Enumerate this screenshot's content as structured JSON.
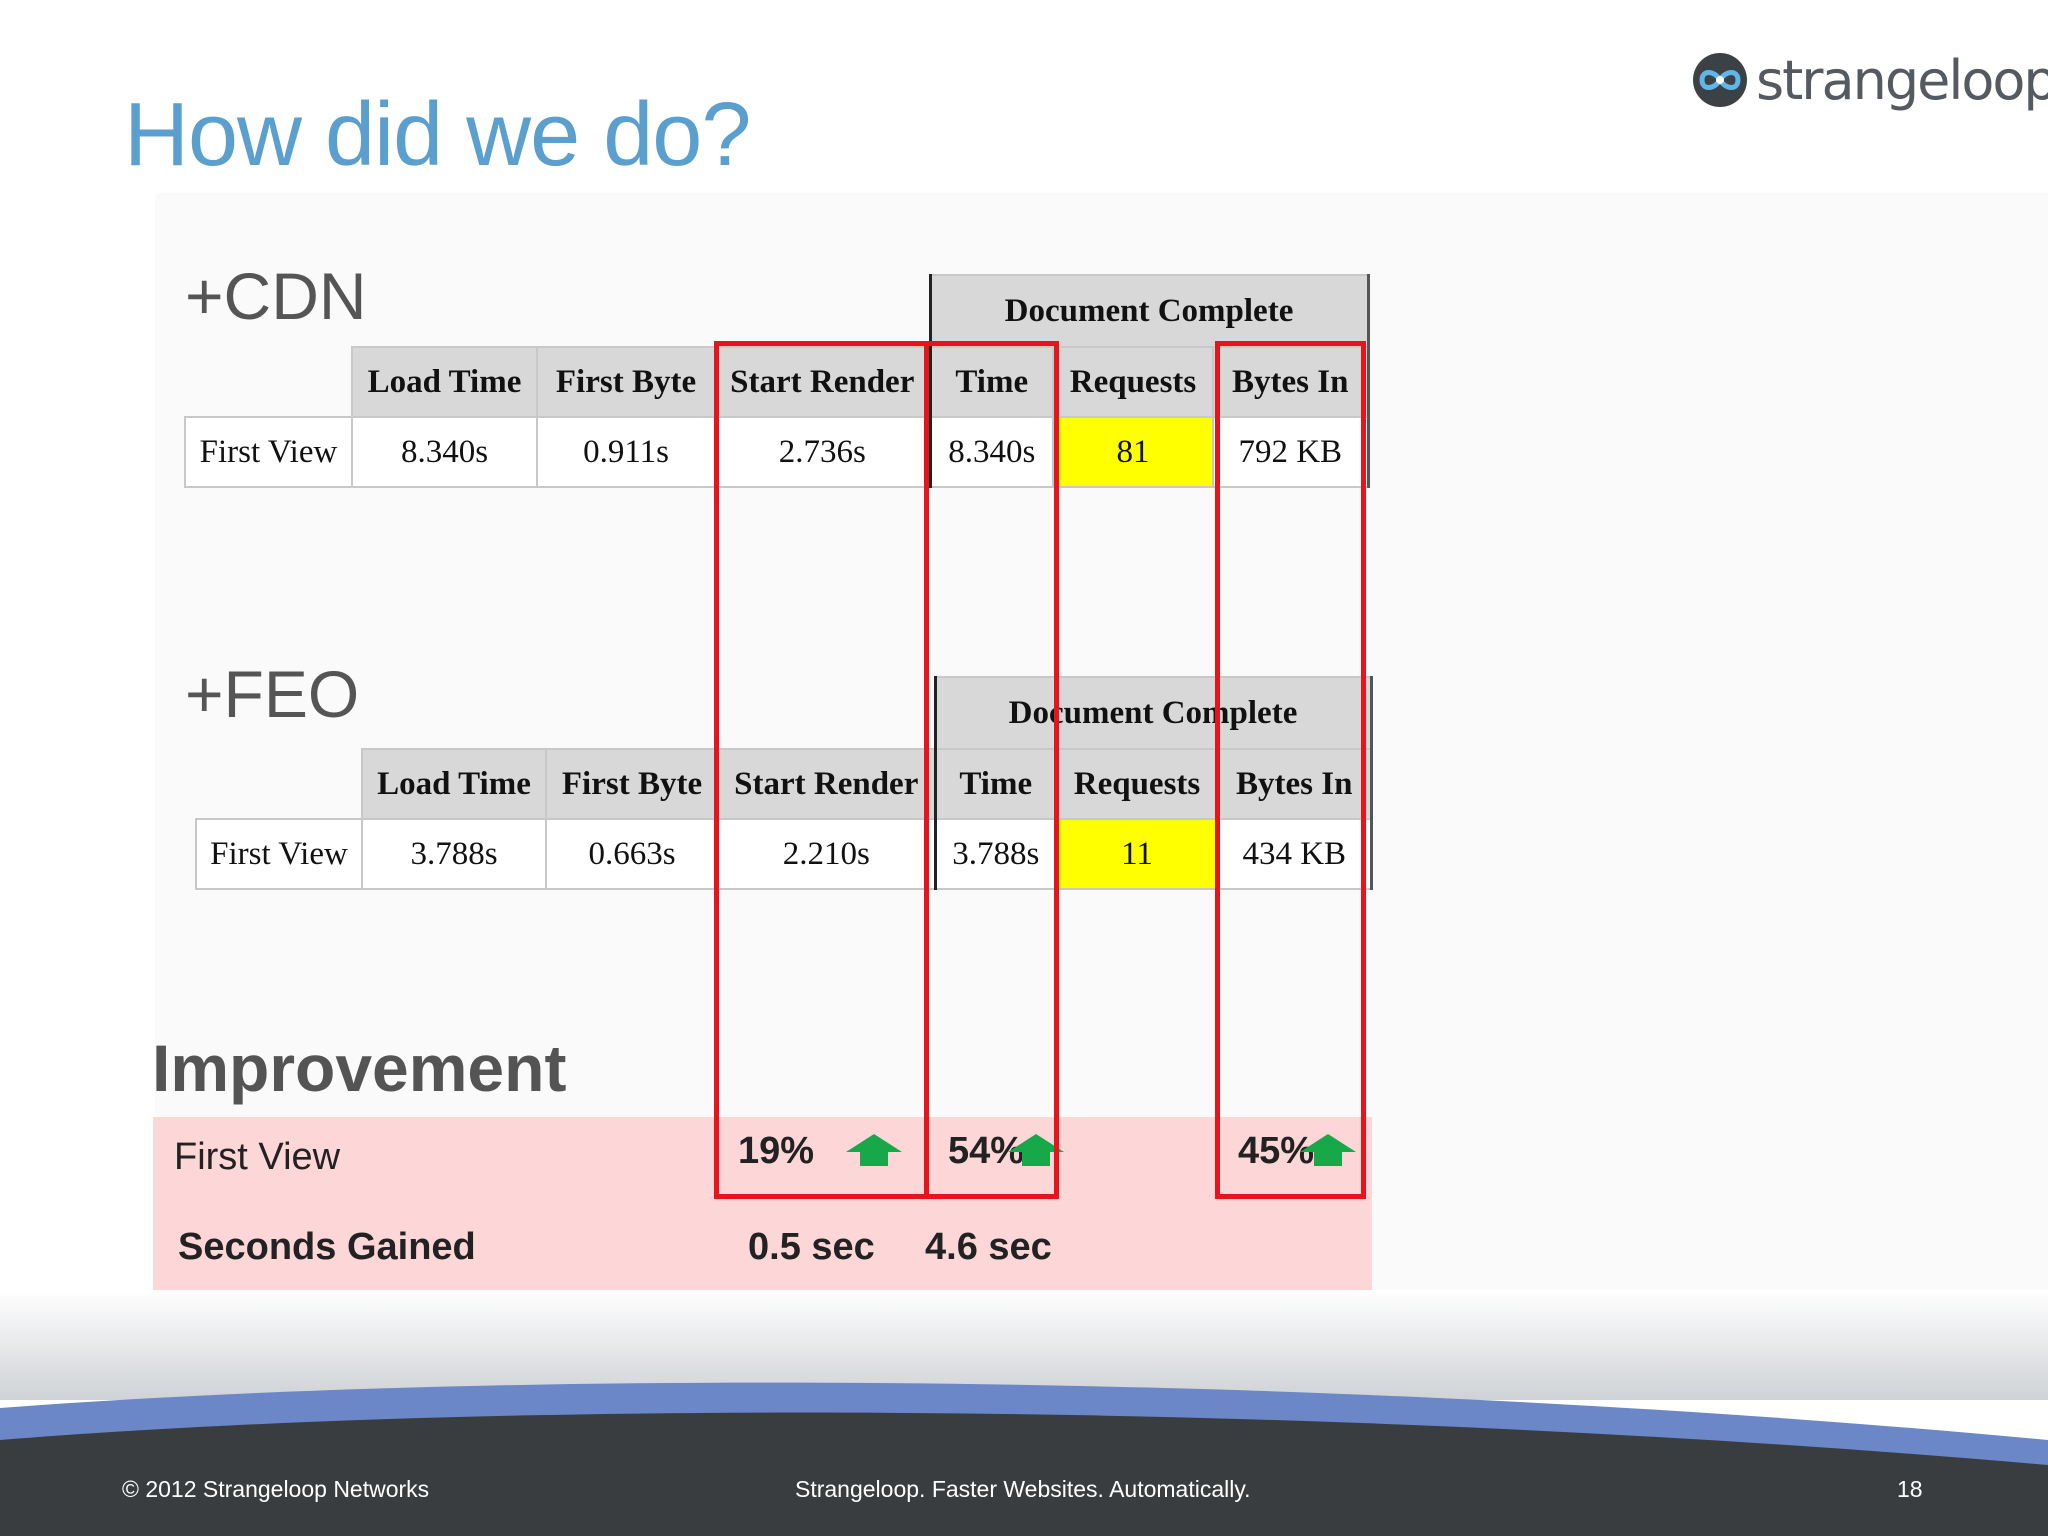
{
  "slide": {
    "title": "How did we do?",
    "logo_text": "strangeloop"
  },
  "cdn": {
    "label": "+CDN",
    "group_header": "Document Complete",
    "headers": [
      "Load Time",
      "First Byte",
      "Start Render",
      "Time",
      "Requests",
      "Bytes In"
    ],
    "row_label": "First View",
    "values": [
      "8.340s",
      "0.911s",
      "2.736s",
      "8.340s",
      "81",
      "792 KB"
    ]
  },
  "feo": {
    "label": "+FEO",
    "group_header": "Document Complete",
    "headers": [
      "Load Time",
      "First Byte",
      "Start Render",
      "Time",
      "Requests",
      "Bytes In"
    ],
    "row_label": "First View",
    "values": [
      "3.788s",
      "0.663s",
      "2.210s",
      "3.788s",
      "11",
      "434 KB"
    ]
  },
  "improvement": {
    "title": "Improvement",
    "first_view_label": "First View",
    "seconds_label": "Seconds Gained",
    "start_render_pct": "19%",
    "time_pct": "54%",
    "bytes_pct": "45%",
    "start_render_sec": "0.5 sec",
    "time_sec": "4.6 sec"
  },
  "footer": {
    "copyright": "© 2012 Strangeloop Networks",
    "tagline": "Strangeloop. Faster Websites. Automatically.",
    "page_number": "18"
  },
  "colors": {
    "title": "#5b9fcf",
    "highlight": "#ffff00",
    "red_box": "#e8141c",
    "improvement_panel": "#fdd6d8",
    "arrow": "#17a84a",
    "footer_dark": "#3a3d3f",
    "footer_blue": "#6b87c8"
  },
  "icons": {
    "logo": "strangeloop-infinity-icon",
    "improvement_arrow": "green-up-arrow-icon"
  }
}
